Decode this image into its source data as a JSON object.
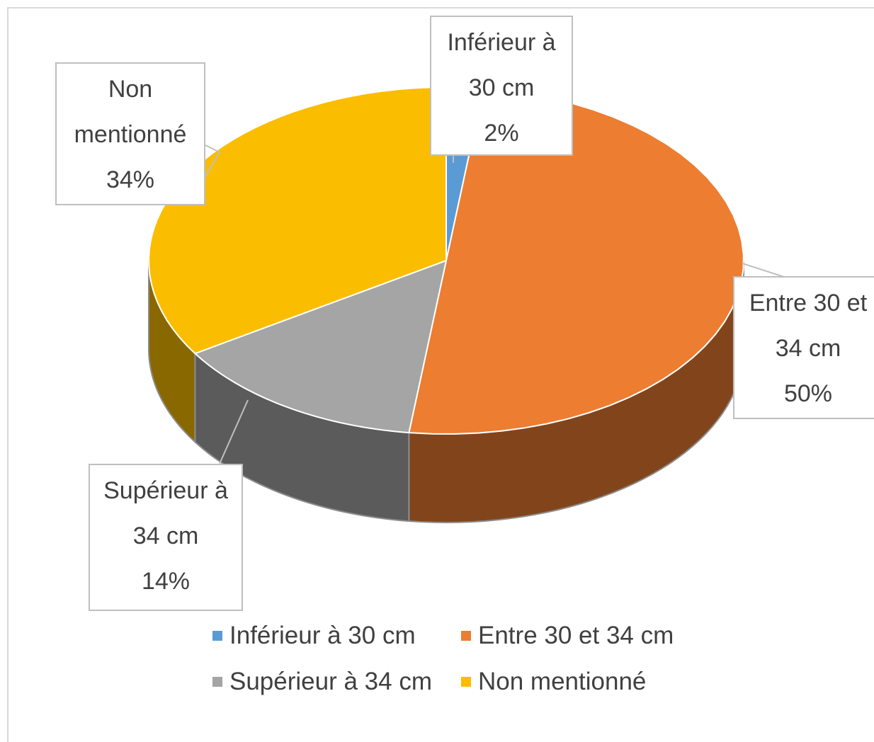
{
  "chart_data": {
    "type": "pie3d",
    "categories": [
      "Inférieur à 30 cm",
      "Entre 30 et 34 cm",
      "Supérieur à 34 cm",
      "Non mentionné"
    ],
    "values": [
      2,
      50,
      14,
      34
    ],
    "value_labels": [
      "2%",
      "50%",
      "14%",
      "34%"
    ],
    "colors": [
      "#5b9bd5",
      "#ed7d31",
      "#a5a5a5",
      "#fbbd00"
    ],
    "legend": "bottom"
  }
}
